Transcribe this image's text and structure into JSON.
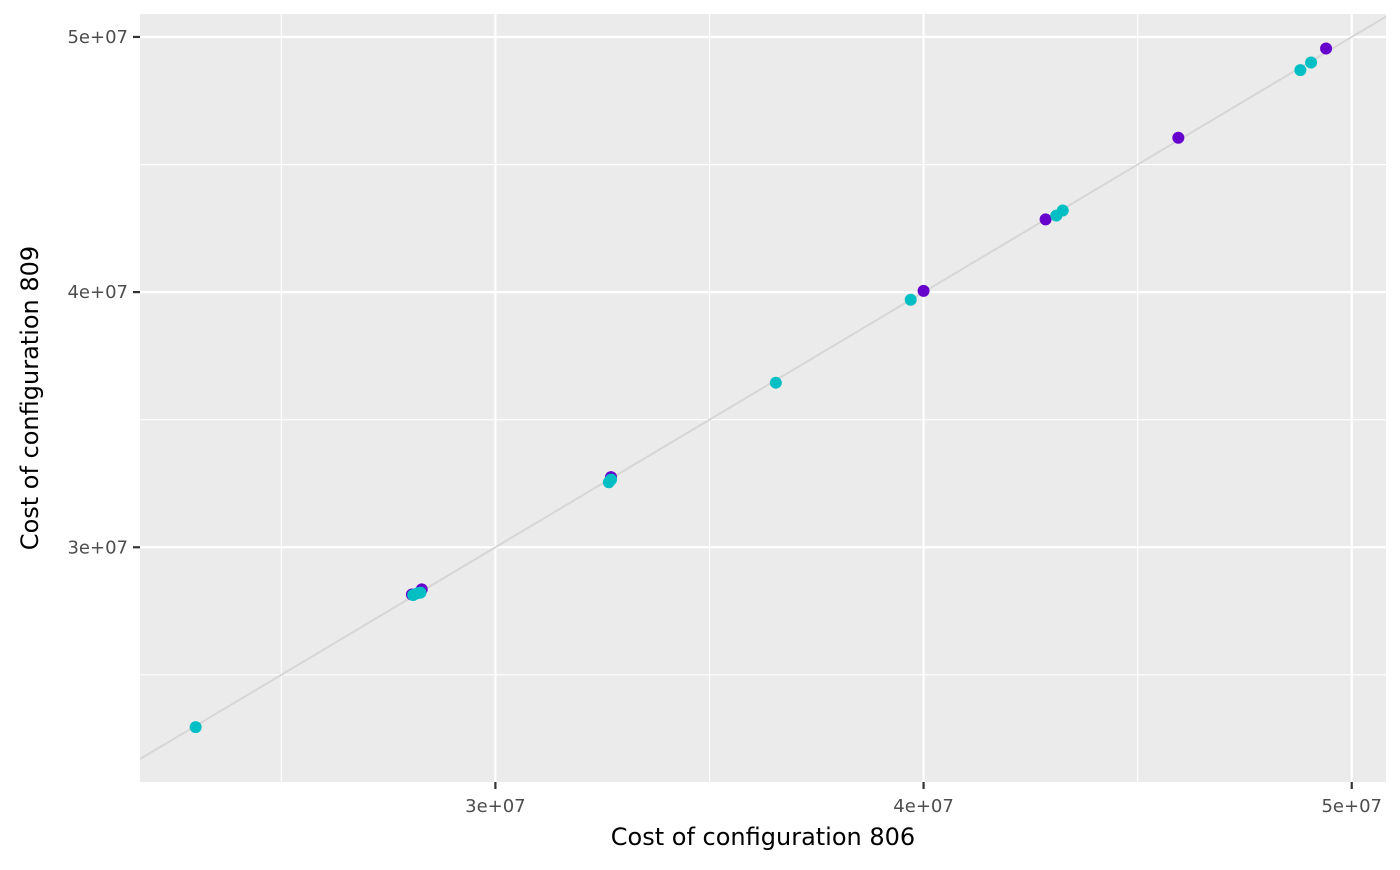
{
  "chart_data": {
    "type": "scatter",
    "title": "",
    "xlabel": "Cost of configuration 806",
    "ylabel": "Cost of configuration 809",
    "xlim": [
      21700000,
      50800000
    ],
    "ylim": [
      20800000,
      50900000
    ],
    "x_ticks": [
      {
        "value": 30000000,
        "label": "3e+07"
      },
      {
        "value": 40000000,
        "label": "4e+07"
      },
      {
        "value": 50000000,
        "label": "5e+07"
      }
    ],
    "y_ticks": [
      {
        "value": 30000000,
        "label": "3e+07"
      },
      {
        "value": 40000000,
        "label": "4e+07"
      },
      {
        "value": 50000000,
        "label": "5e+07"
      }
    ],
    "x_minor": [
      25000000,
      35000000,
      45000000
    ],
    "y_minor": [
      25000000,
      35000000,
      45000000
    ],
    "grid": true,
    "panel_background": "#ebebeb",
    "grid_color": "#ffffff",
    "reference_line": {
      "type": "identity",
      "color": "#d6d6d6"
    },
    "legend": "none",
    "series": [
      {
        "color": "#6600cc",
        "points": [
          {
            "x": 28050000,
            "y": 28150000
          },
          {
            "x": 28280000,
            "y": 28350000
          },
          {
            "x": 32700000,
            "y": 32750000
          },
          {
            "x": 40000000,
            "y": 40050000
          },
          {
            "x": 42850000,
            "y": 42850000
          },
          {
            "x": 45950000,
            "y": 46050000
          },
          {
            "x": 49400000,
            "y": 49550000
          }
        ]
      },
      {
        "color": "#00bfc4",
        "points": [
          {
            "x": 23000000,
            "y": 22950000
          },
          {
            "x": 28080000,
            "y": 28130000
          },
          {
            "x": 28180000,
            "y": 28200000
          },
          {
            "x": 28250000,
            "y": 28220000
          },
          {
            "x": 32650000,
            "y": 32550000
          },
          {
            "x": 32700000,
            "y": 32650000
          },
          {
            "x": 36550000,
            "y": 36450000
          },
          {
            "x": 39700000,
            "y": 39700000
          },
          {
            "x": 43100000,
            "y": 43000000
          },
          {
            "x": 43250000,
            "y": 43200000
          },
          {
            "x": 48800000,
            "y": 48700000
          },
          {
            "x": 49050000,
            "y": 49000000
          }
        ]
      }
    ]
  }
}
